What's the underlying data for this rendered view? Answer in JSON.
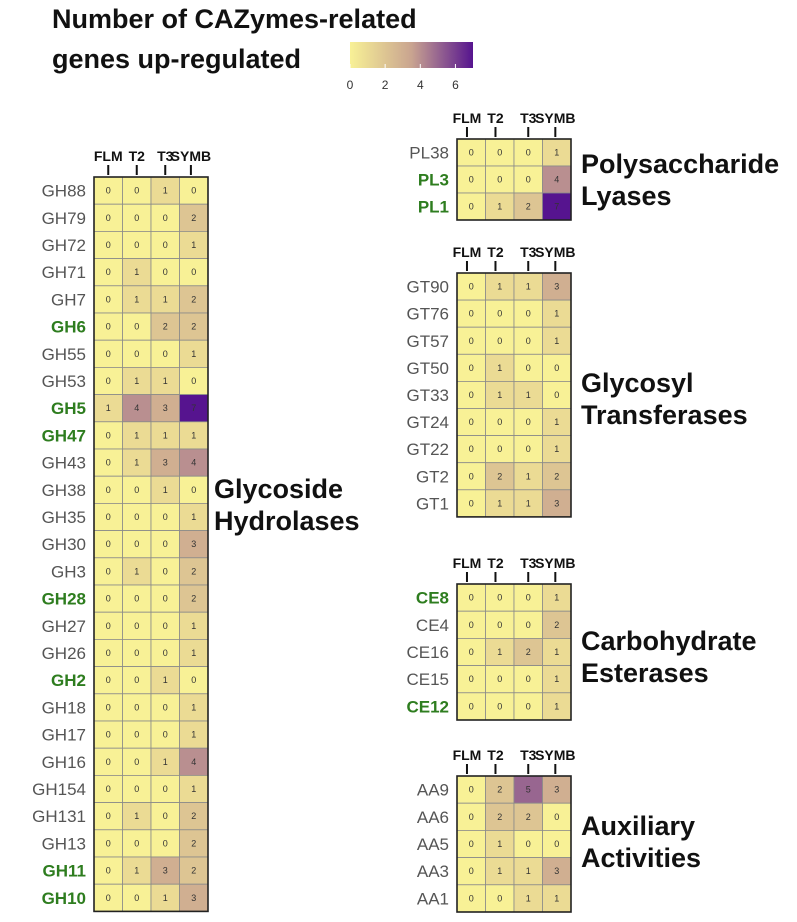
{
  "chart_data": {
    "type": "heatmap",
    "title": "Number of CAZymes-related genes up-regulated",
    "title_lines": [
      "Number of CAZymes-related",
      "genes up-regulated"
    ],
    "columns": [
      "FLM",
      "T2",
      "T3",
      "SYMB"
    ],
    "colorbar": {
      "min": 0,
      "max": 7,
      "ticks": [
        0,
        2,
        4,
        6
      ],
      "low_color": "#f8f196",
      "mid_color": "#c9a490",
      "high_color": "#56148f"
    },
    "highlight_color": "#2e7d1f",
    "default_label_color": "#555555",
    "groups": [
      {
        "title_lines": [
          "Glycoside",
          "Hydrolases"
        ],
        "rows": [
          {
            "label": "GH88",
            "highlight": false,
            "values": [
              0,
              0,
              1,
              0
            ]
          },
          {
            "label": "GH79",
            "highlight": false,
            "values": [
              0,
              0,
              0,
              2
            ]
          },
          {
            "label": "GH72",
            "highlight": false,
            "values": [
              0,
              0,
              0,
              1
            ]
          },
          {
            "label": "GH71",
            "highlight": false,
            "values": [
              0,
              1,
              0,
              0
            ]
          },
          {
            "label": "GH7",
            "highlight": false,
            "values": [
              0,
              1,
              1,
              2
            ]
          },
          {
            "label": "GH6",
            "highlight": true,
            "values": [
              0,
              0,
              2,
              2
            ]
          },
          {
            "label": "GH55",
            "highlight": false,
            "values": [
              0,
              0,
              0,
              1
            ]
          },
          {
            "label": "GH53",
            "highlight": false,
            "values": [
              0,
              1,
              1,
              0
            ]
          },
          {
            "label": "GH5",
            "highlight": true,
            "values": [
              1,
              4,
              3,
              7
            ]
          },
          {
            "label": "GH47",
            "highlight": true,
            "values": [
              0,
              1,
              1,
              1
            ]
          },
          {
            "label": "GH43",
            "highlight": false,
            "values": [
              0,
              1,
              3,
              4
            ]
          },
          {
            "label": "GH38",
            "highlight": false,
            "values": [
              0,
              0,
              1,
              0
            ]
          },
          {
            "label": "GH35",
            "highlight": false,
            "values": [
              0,
              0,
              0,
              1
            ]
          },
          {
            "label": "GH30",
            "highlight": false,
            "values": [
              0,
              0,
              0,
              3
            ]
          },
          {
            "label": "GH3",
            "highlight": false,
            "values": [
              0,
              1,
              0,
              2
            ]
          },
          {
            "label": "GH28",
            "highlight": true,
            "values": [
              0,
              0,
              0,
              2
            ]
          },
          {
            "label": "GH27",
            "highlight": false,
            "values": [
              0,
              0,
              0,
              1
            ]
          },
          {
            "label": "GH26",
            "highlight": false,
            "values": [
              0,
              0,
              0,
              1
            ]
          },
          {
            "label": "GH2",
            "highlight": true,
            "values": [
              0,
              0,
              1,
              0
            ]
          },
          {
            "label": "GH18",
            "highlight": false,
            "values": [
              0,
              0,
              0,
              1
            ]
          },
          {
            "label": "GH17",
            "highlight": false,
            "values": [
              0,
              0,
              0,
              1
            ]
          },
          {
            "label": "GH16",
            "highlight": false,
            "values": [
              0,
              0,
              1,
              4
            ]
          },
          {
            "label": "GH154",
            "highlight": false,
            "values": [
              0,
              0,
              0,
              1
            ]
          },
          {
            "label": "GH131",
            "highlight": false,
            "values": [
              0,
              1,
              0,
              2
            ]
          },
          {
            "label": "GH13",
            "highlight": false,
            "values": [
              0,
              0,
              0,
              2
            ]
          },
          {
            "label": "GH11",
            "highlight": true,
            "values": [
              0,
              1,
              3,
              2
            ]
          },
          {
            "label": "GH10",
            "highlight": true,
            "values": [
              0,
              0,
              1,
              3
            ]
          }
        ]
      },
      {
        "title_lines": [
          "Polysaccharide",
          "Lyases"
        ],
        "rows": [
          {
            "label": "PL38",
            "highlight": false,
            "values": [
              0,
              0,
              0,
              1
            ]
          },
          {
            "label": "PL3",
            "highlight": true,
            "values": [
              0,
              0,
              0,
              4
            ]
          },
          {
            "label": "PL1",
            "highlight": true,
            "values": [
              0,
              1,
              2,
              7
            ]
          }
        ]
      },
      {
        "title_lines": [
          "Glycosyl",
          "Transferases"
        ],
        "rows": [
          {
            "label": "GT90",
            "highlight": false,
            "values": [
              0,
              1,
              1,
              3
            ]
          },
          {
            "label": "GT76",
            "highlight": false,
            "values": [
              0,
              0,
              0,
              1
            ]
          },
          {
            "label": "GT57",
            "highlight": false,
            "values": [
              0,
              0,
              0,
              1
            ]
          },
          {
            "label": "GT50",
            "highlight": false,
            "values": [
              0,
              1,
              0,
              0
            ]
          },
          {
            "label": "GT33",
            "highlight": false,
            "values": [
              0,
              1,
              1,
              0
            ]
          },
          {
            "label": "GT24",
            "highlight": false,
            "values": [
              0,
              0,
              0,
              1
            ]
          },
          {
            "label": "GT22",
            "highlight": false,
            "values": [
              0,
              0,
              0,
              1
            ]
          },
          {
            "label": "GT2",
            "highlight": false,
            "values": [
              0,
              2,
              1,
              2
            ]
          },
          {
            "label": "GT1",
            "highlight": false,
            "values": [
              0,
              1,
              1,
              3
            ]
          }
        ]
      },
      {
        "title_lines": [
          "Carbohydrate",
          "Esterases"
        ],
        "rows": [
          {
            "label": "CE8",
            "highlight": true,
            "values": [
              0,
              0,
              0,
              1
            ]
          },
          {
            "label": "CE4",
            "highlight": false,
            "values": [
              0,
              0,
              0,
              2
            ]
          },
          {
            "label": "CE16",
            "highlight": false,
            "values": [
              0,
              1,
              2,
              1
            ]
          },
          {
            "label": "CE15",
            "highlight": false,
            "values": [
              0,
              0,
              0,
              1
            ]
          },
          {
            "label": "CE12",
            "highlight": true,
            "values": [
              0,
              0,
              0,
              1
            ]
          }
        ]
      },
      {
        "title_lines": [
          "Auxiliary",
          "Activities"
        ],
        "rows": [
          {
            "label": "AA9",
            "highlight": false,
            "values": [
              0,
              2,
              5,
              3
            ]
          },
          {
            "label": "AA6",
            "highlight": false,
            "values": [
              0,
              2,
              2,
              0
            ]
          },
          {
            "label": "AA5",
            "highlight": false,
            "values": [
              0,
              1,
              0,
              0
            ]
          },
          {
            "label": "AA3",
            "highlight": false,
            "values": [
              0,
              1,
              1,
              3
            ]
          },
          {
            "label": "AA1",
            "highlight": false,
            "values": [
              0,
              0,
              1,
              1
            ]
          }
        ]
      }
    ]
  }
}
